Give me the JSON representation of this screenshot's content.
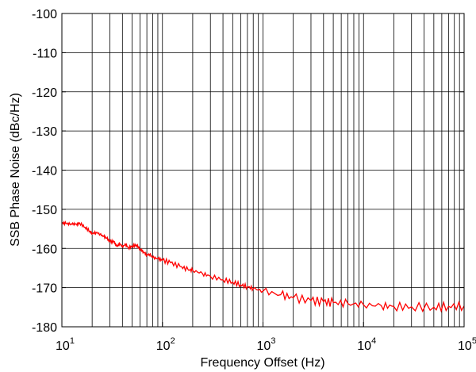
{
  "chart_data": {
    "type": "line",
    "xlabel": "Frequency Offset (Hz)",
    "ylabel": "SSB Phase Noise (dBc/Hz)",
    "x_scale": "log",
    "xlim": [
      10,
      100000
    ],
    "ylim": [
      -180,
      -100
    ],
    "grid": "on",
    "x_ticks": [
      {
        "base": "10",
        "exp": "1"
      },
      {
        "base": "10",
        "exp": "2"
      },
      {
        "base": "10",
        "exp": "3"
      },
      {
        "base": "10",
        "exp": "4"
      },
      {
        "base": "10",
        "exp": "5"
      }
    ],
    "y_ticks": [
      "-100",
      "-110",
      "-120",
      "-130",
      "-140",
      "-150",
      "-160",
      "-170",
      "-180"
    ],
    "series": [
      {
        "color": "#ff0000",
        "points": [
          [
            10,
            -153.5
          ],
          [
            11,
            -153.6
          ],
          [
            12,
            -153.8
          ],
          [
            13,
            -153.7
          ],
          [
            14,
            -153.8
          ],
          [
            15,
            -153.5
          ],
          [
            17,
            -154.6
          ],
          [
            19,
            -155.6
          ],
          [
            20,
            -156.2
          ],
          [
            22,
            -155.9
          ],
          [
            24,
            -156.4
          ],
          [
            26,
            -156.9
          ],
          [
            28,
            -157.4
          ],
          [
            30,
            -158.2
          ],
          [
            33,
            -158.3
          ],
          [
            35,
            -159.4
          ],
          [
            38,
            -158.9
          ],
          [
            40,
            -159.6
          ],
          [
            43,
            -158.9
          ],
          [
            46,
            -159.9
          ],
          [
            50,
            -159.4
          ],
          [
            55,
            -159.1
          ],
          [
            60,
            -160.2
          ],
          [
            65,
            -160.9
          ],
          [
            70,
            -161.7
          ],
          [
            75,
            -161.5
          ],
          [
            80,
            -162.3
          ],
          [
            90,
            -162.6
          ],
          [
            100,
            -163.0
          ],
          [
            120,
            -163.6
          ],
          [
            150,
            -164.6
          ],
          [
            180,
            -165.4
          ],
          [
            200,
            -165.6
          ],
          [
            250,
            -166.4
          ],
          [
            300,
            -167.1
          ],
          [
            400,
            -168.0
          ],
          [
            500,
            -168.6
          ],
          [
            600,
            -169.3
          ],
          [
            700,
            -169.8
          ],
          [
            800,
            -170.2
          ],
          [
            1000,
            -170.9
          ],
          [
            1500,
            -171.8
          ],
          [
            2000,
            -172.6
          ],
          [
            3000,
            -173.3
          ],
          [
            4000,
            -173.6
          ],
          [
            5000,
            -173.8
          ],
          [
            7000,
            -174.1
          ],
          [
            10000,
            -174.4
          ],
          [
            15000,
            -174.6
          ],
          [
            20000,
            -174.8
          ],
          [
            30000,
            -174.9
          ],
          [
            50000,
            -175.0
          ],
          [
            70000,
            -174.8
          ],
          [
            100000,
            -174.7
          ]
        ]
      }
    ]
  }
}
